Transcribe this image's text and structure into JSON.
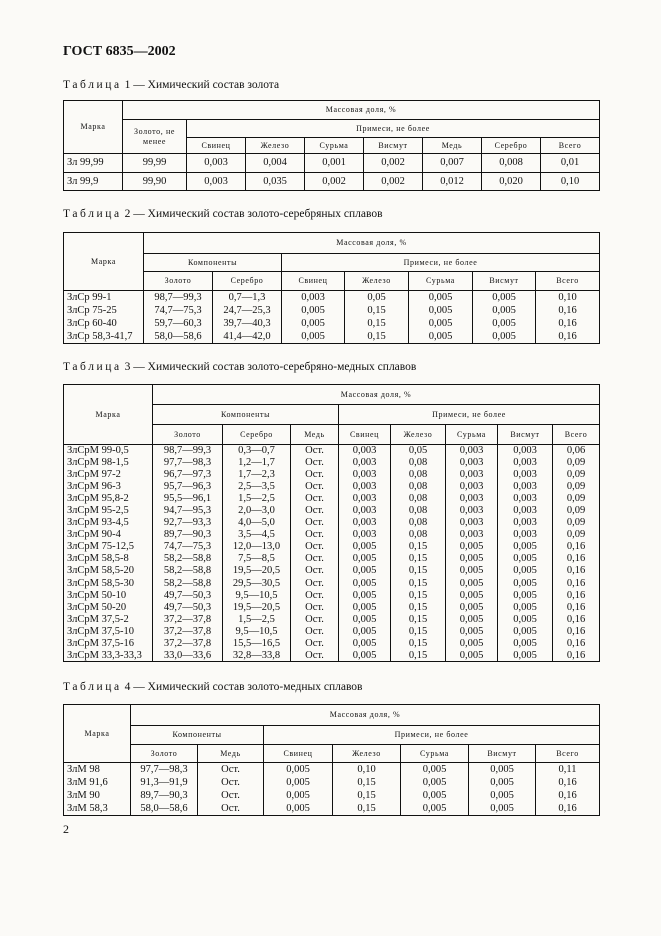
{
  "header": {
    "title": "ГОСТ 6835—2002"
  },
  "tables": [
    {
      "caption_label": "Таблица",
      "caption_number": "1",
      "caption_text": "— Химический состав золота",
      "mark_header": "Марка",
      "mass_header": "Массовая доля, %",
      "groups": [
        {
          "label": "Золото, не менее",
          "columns": []
        },
        {
          "label": "Примеси, не более",
          "columns": [
            "Свинец",
            "Железо",
            "Сурьма",
            "Висмут",
            "Медь",
            "Серебро",
            "Всего"
          ]
        }
      ],
      "rows": [
        [
          "Зл 99,99",
          "99,99",
          "0,003",
          "0,004",
          "0,001",
          "0,002",
          "0,007",
          "0,008",
          "0,01"
        ],
        [
          "Зл 99,9",
          "99,90",
          "0,003",
          "0,035",
          "0,002",
          "0,002",
          "0,012",
          "0,020",
          "0,10"
        ]
      ]
    },
    {
      "caption_label": "Таблица",
      "caption_number": "2",
      "caption_text": "— Химический состав золото-серебряных сплавов",
      "mark_header": "Марка",
      "mass_header": "Массовая доля, %",
      "groups": [
        {
          "label": "Компоненты",
          "columns": [
            "Золото",
            "Серебро"
          ]
        },
        {
          "label": "Примеси, не более",
          "columns": [
            "Свинец",
            "Железо",
            "Сурьма",
            "Висмут",
            "Всего"
          ]
        }
      ],
      "rows": [
        [
          "ЗлСр 99-1",
          "98,7—99,3",
          "0,7—1,3",
          "0,003",
          "0,05",
          "0,005",
          "0,005",
          "0,10"
        ],
        [
          "ЗлСр 75-25",
          "74,7—75,3",
          "24,7—25,3",
          "0,005",
          "0,15",
          "0,005",
          "0,005",
          "0,16"
        ],
        [
          "ЗлСр 60-40",
          "59,7—60,3",
          "39,7—40,3",
          "0,005",
          "0,15",
          "0,005",
          "0,005",
          "0,16"
        ],
        [
          "ЗлСр 58,3-41,7",
          "58,0—58,6",
          "41,4—42,0",
          "0,005",
          "0,15",
          "0,005",
          "0,005",
          "0,16"
        ]
      ]
    },
    {
      "caption_label": "Таблица",
      "caption_number": "3",
      "caption_text": "— Химический состав золото-серебряно-медных сплавов",
      "mark_header": "Марка",
      "mass_header": "Массовая доля, %",
      "groups": [
        {
          "label": "Компоненты",
          "columns": [
            "Золото",
            "Серебро",
            "Медь"
          ]
        },
        {
          "label": "Примеси, не более",
          "columns": [
            "Свинец",
            "Железо",
            "Сурьма",
            "Висмут",
            "Всего"
          ]
        }
      ],
      "rows": [
        [
          "ЗлСрМ 99-0,5",
          "98,7—99,3",
          "0,3—0,7",
          "Ост.",
          "0,003",
          "0,05",
          "0,003",
          "0,003",
          "0,06"
        ],
        [
          "ЗлСрМ 98-1,5",
          "97,7—98,3",
          "1,2—1,7",
          "Ост.",
          "0,003",
          "0,08",
          "0,003",
          "0,003",
          "0,09"
        ],
        [
          "ЗлСрМ 97-2",
          "96,7—97,3",
          "1,7—2,3",
          "Ост.",
          "0,003",
          "0,08",
          "0,003",
          "0,003",
          "0,09"
        ],
        [
          "ЗлСрМ 96-3",
          "95,7—96,3",
          "2,5—3,5",
          "Ост.",
          "0,003",
          "0,08",
          "0,003",
          "0,003",
          "0,09"
        ],
        [
          "ЗлСрМ 95,8-2",
          "95,5—96,1",
          "1,5—2,5",
          "Ост.",
          "0,003",
          "0,08",
          "0,003",
          "0,003",
          "0,09"
        ],
        [
          "ЗлСрМ 95-2,5",
          "94,7—95,3",
          "2,0—3,0",
          "Ост.",
          "0,003",
          "0,08",
          "0,003",
          "0,003",
          "0,09"
        ],
        [
          "ЗлСрМ 93-4,5",
          "92,7—93,3",
          "4,0—5,0",
          "Ост.",
          "0,003",
          "0,08",
          "0,003",
          "0,003",
          "0,09"
        ],
        [
          "ЗлСрМ 90-4",
          "89,7—90,3",
          "3,5—4,5",
          "Ост.",
          "0,003",
          "0,08",
          "0,003",
          "0,003",
          "0,09"
        ],
        [
          "ЗлСрМ 75-12,5",
          "74,7—75,3",
          "12,0—13,0",
          "Ост.",
          "0,005",
          "0,15",
          "0,005",
          "0,005",
          "0,16"
        ],
        [
          "ЗлСрМ 58,5-8",
          "58,2—58,8",
          "7,5—8,5",
          "Ост.",
          "0,005",
          "0,15",
          "0,005",
          "0,005",
          "0,16"
        ],
        [
          "ЗлСрМ 58,5-20",
          "58,2—58,8",
          "19,5—20,5",
          "Ост.",
          "0,005",
          "0,15",
          "0,005",
          "0,005",
          "0,16"
        ],
        [
          "ЗлСрМ 58,5-30",
          "58,2—58,8",
          "29,5—30,5",
          "Ост.",
          "0,005",
          "0,15",
          "0,005",
          "0,005",
          "0,16"
        ],
        [
          "ЗлСрМ 50-10",
          "49,7—50,3",
          "9,5—10,5",
          "Ост.",
          "0,005",
          "0,15",
          "0,005",
          "0,005",
          "0,16"
        ],
        [
          "ЗлСрМ 50-20",
          "49,7—50,3",
          "19,5—20,5",
          "Ост.",
          "0,005",
          "0,15",
          "0,005",
          "0,005",
          "0,16"
        ],
        [
          "ЗлСрМ 37,5-2",
          "37,2—37,8",
          "1,5—2,5",
          "Ост.",
          "0,005",
          "0,15",
          "0,005",
          "0,005",
          "0,16"
        ],
        [
          "ЗлСрМ 37,5-10",
          "37,2—37,8",
          "9,5—10,5",
          "Ост.",
          "0,005",
          "0,15",
          "0,005",
          "0,005",
          "0,16"
        ],
        [
          "ЗлСрМ 37,5-16",
          "37,2—37,8",
          "15,5—16,5",
          "Ост.",
          "0,005",
          "0,15",
          "0,005",
          "0,005",
          "0,16"
        ],
        [
          "ЗлСрМ 33,3-33,3",
          "33,0—33,6",
          "32,8—33,8",
          "Ост.",
          "0,005",
          "0,15",
          "0,005",
          "0,005",
          "0,16"
        ]
      ]
    },
    {
      "caption_label": "Таблица",
      "caption_number": "4",
      "caption_text": "— Химический состав золото-медных сплавов",
      "mark_header": "Марка",
      "mass_header": "Массовая доля, %",
      "groups": [
        {
          "label": "Компоненты",
          "columns": [
            "Золото",
            "Медь"
          ]
        },
        {
          "label": "Примеси, не более",
          "columns": [
            "Свинец",
            "Железо",
            "Сурьма",
            "Висмут",
            "Всего"
          ]
        }
      ],
      "rows": [
        [
          "ЗлМ 98",
          "97,7—98,3",
          "Ост.",
          "0,005",
          "0,10",
          "0,005",
          "0,005",
          "0,11"
        ],
        [
          "ЗлМ 91,6",
          "91,3—91,9",
          "Ост.",
          "0,005",
          "0,15",
          "0,005",
          "0,005",
          "0,16"
        ],
        [
          "ЗлМ 90",
          "89,7—90,3",
          "Ост.",
          "0,005",
          "0,15",
          "0,005",
          "0,005",
          "0,16"
        ],
        [
          "ЗлМ 58,3",
          "58,0—58,6",
          "Ост.",
          "0,005",
          "0,15",
          "0,005",
          "0,005",
          "0,16"
        ]
      ]
    }
  ],
  "page_number": "2"
}
